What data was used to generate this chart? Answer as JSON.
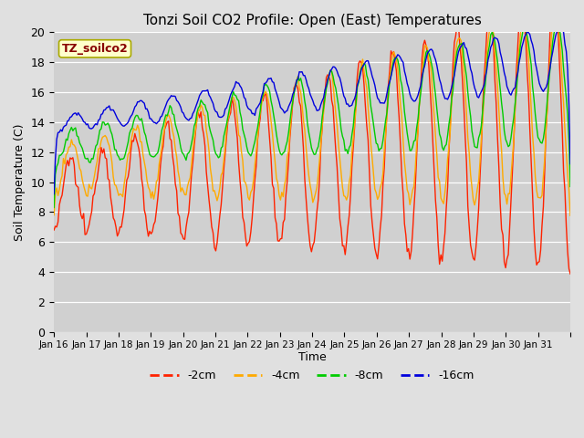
{
  "title": "Tonzi Soil CO2 Profile: Open (East) Temperatures",
  "xlabel": "Time",
  "ylabel": "Soil Temperature (C)",
  "ylim": [
    0,
    20
  ],
  "yticks": [
    0,
    2,
    4,
    6,
    8,
    10,
    12,
    14,
    16,
    18,
    20
  ],
  "fig_bg": "#e0e0e0",
  "ax_bg": "#d0d0d0",
  "legend_label": "TZ_soilco2",
  "legend_box_facecolor": "#ffffcc",
  "legend_box_edgecolor": "#aaaa00",
  "legend_box_text_color": "#880000",
  "line_colors": {
    "-2cm": "#ff2200",
    "-4cm": "#ffaa00",
    "-8cm": "#00cc00",
    "-16cm": "#0000dd"
  },
  "x_labels": [
    "Jan 16",
    "Jan 17",
    "Jan 18",
    "Jan 19",
    "Jan 20",
    "Jan 21",
    "Jan 22",
    "Jan 23",
    "Jan 24",
    "Jan 25",
    "Jan 26",
    "Jan 27",
    "Jan 28",
    "Jan 29",
    "Jan 30",
    "Jan 31"
  ],
  "n_days": 16,
  "n_per_day": 24,
  "line_width": 1.0
}
